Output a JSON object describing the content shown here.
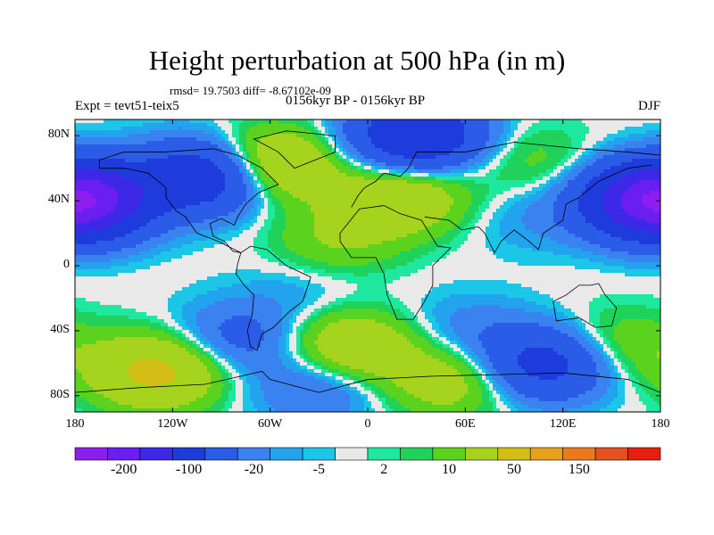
{
  "title": "Height perturbation at 500 hPa (in m)",
  "stats": "rmsd= 19.7503 diff= -8.67102e-09",
  "subtitle": "0156kyr BP - 0156kyr BP",
  "experiment": "Expt = tevt51-teix5",
  "season": "DJF",
  "map": {
    "projection": "cylindrical equidistant",
    "lon_range": [
      -180,
      180
    ],
    "lat_range": [
      -90,
      90
    ],
    "x_ticks": [
      {
        "label": "180",
        "lon": -180
      },
      {
        "label": "120W",
        "lon": -120
      },
      {
        "label": "60W",
        "lon": -60
      },
      {
        "label": "0",
        "lon": 0
      },
      {
        "label": "60E",
        "lon": 60
      },
      {
        "label": "120E",
        "lon": 120
      },
      {
        "label": "180",
        "lon": 180
      }
    ],
    "y_ticks": [
      {
        "label": "80N",
        "lat": 80
      },
      {
        "label": "40N",
        "lat": 40
      },
      {
        "label": "0",
        "lat": 0
      },
      {
        "label": "40S",
        "lat": -40
      },
      {
        "label": "80S",
        "lat": -80
      }
    ],
    "field_features": [
      {
        "kind": "high",
        "lon": -60,
        "lat": 62,
        "amp": 60
      },
      {
        "kind": "high",
        "lon": 20,
        "lat": 42,
        "amp": 45
      },
      {
        "kind": "high",
        "lon": -20,
        "lat": 15,
        "amp": 20
      },
      {
        "kind": "high",
        "lon": 100,
        "lat": 65,
        "amp": 15
      },
      {
        "kind": "low",
        "lon": -100,
        "lat": 55,
        "amp": -90
      },
      {
        "kind": "low",
        "lon": 30,
        "lat": 80,
        "amp": -95
      },
      {
        "kind": "low",
        "lon": -175,
        "lat": 40,
        "amp": -110
      },
      {
        "kind": "low",
        "lon": 175,
        "lat": 40,
        "amp": -110
      },
      {
        "kind": "low",
        "lon": 100,
        "lat": 30,
        "amp": -10
      },
      {
        "kind": "high",
        "lon": -130,
        "lat": -65,
        "amp": 60
      },
      {
        "kind": "high",
        "lon": -10,
        "lat": -50,
        "amp": 45
      },
      {
        "kind": "high",
        "lon": 50,
        "lat": -70,
        "amp": 35
      },
      {
        "kind": "high",
        "lon": 150,
        "lat": -50,
        "amp": 25
      },
      {
        "kind": "low",
        "lon": -80,
        "lat": -45,
        "amp": -30
      },
      {
        "kind": "low",
        "lon": 110,
        "lat": -60,
        "amp": -70
      },
      {
        "kind": "low",
        "lon": 60,
        "lat": -40,
        "amp": -15
      },
      {
        "kind": "low",
        "lon": -30,
        "lat": -75,
        "amp": -25
      },
      {
        "kind": "low",
        "lon": -40,
        "lat": -15,
        "amp": -8
      }
    ]
  },
  "colorbar": {
    "levels": [
      -200,
      -150,
      -100,
      -50,
      -20,
      -10,
      -5,
      -2,
      2,
      5,
      10,
      20,
      50,
      100,
      150,
      200
    ],
    "colors": [
      "#8c1ef0",
      "#6a1ef0",
      "#3c28e6",
      "#1e3cdc",
      "#2a5ce8",
      "#3a82ef",
      "#23a3ed",
      "#1cc6e6",
      "#e9e9e9",
      "#1ee8a0",
      "#20d25a",
      "#5ad21e",
      "#a6d41e",
      "#d2be14",
      "#e6a01c",
      "#eb7a1e",
      "#e4501e",
      "#e81e0e"
    ],
    "labels": [
      {
        "text": "-200",
        "index": 0
      },
      {
        "text": "-100",
        "index": 2
      },
      {
        "text": "-20",
        "index": 4
      },
      {
        "text": "-5",
        "index": 6
      },
      {
        "text": "2",
        "index": 8
      },
      {
        "text": "10",
        "index": 10
      },
      {
        "text": "50",
        "index": 12
      },
      {
        "text": "150",
        "index": 14
      }
    ]
  }
}
